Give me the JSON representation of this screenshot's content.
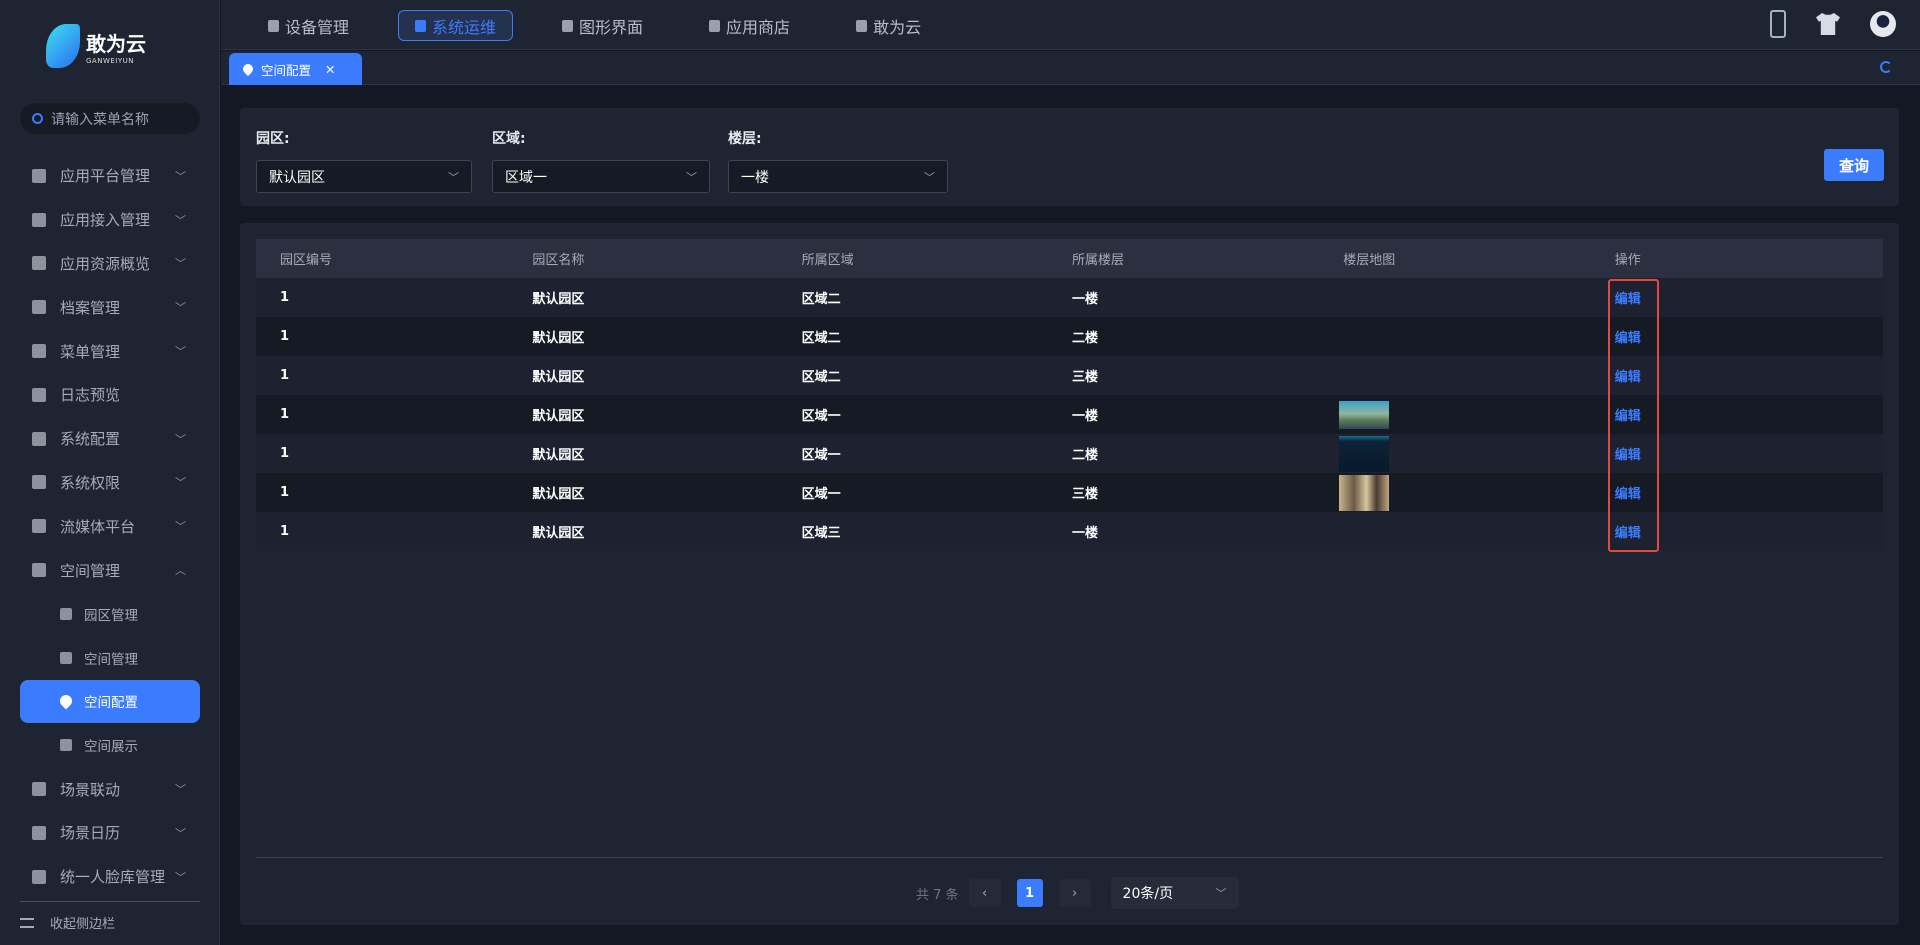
{
  "logo": {
    "name": "敢为云",
    "sub": "GANWEIYUN"
  },
  "search": {
    "placeholder": "请输入菜单名称"
  },
  "sidebar": {
    "items": [
      {
        "label": "应用平台管理",
        "chevron": "down"
      },
      {
        "label": "应用接入管理",
        "chevron": "down"
      },
      {
        "label": "应用资源概览",
        "chevron": "down"
      },
      {
        "label": "档案管理",
        "chevron": "down"
      },
      {
        "label": "菜单管理",
        "chevron": "down"
      },
      {
        "label": "日志预览"
      },
      {
        "label": "系统配置",
        "chevron": "down"
      },
      {
        "label": "系统权限",
        "chevron": "down"
      },
      {
        "label": "流媒体平台",
        "chevron": "down"
      },
      {
        "label": "空间管理",
        "chevron": "up"
      },
      {
        "label": "园区管理",
        "sub": true
      },
      {
        "label": "空间管理",
        "sub": true
      },
      {
        "label": "空间配置",
        "sub": true,
        "active": true
      },
      {
        "label": "空间展示",
        "sub": true
      },
      {
        "label": "场景联动",
        "chevron": "down"
      },
      {
        "label": "场景日历",
        "chevron": "down"
      },
      {
        "label": "统一人脸库管理",
        "chevron": "down"
      }
    ],
    "collapse": "收起侧边栏"
  },
  "topnav": {
    "items": [
      "设备管理",
      "系统运维",
      "图形界面",
      "应用商店",
      "敢为云"
    ],
    "active": 1
  },
  "tabs": [
    {
      "label": "空间配置",
      "close": "✕"
    }
  ],
  "filter": {
    "park": {
      "label": "园区:",
      "value": "默认园区"
    },
    "area": {
      "label": "区域:",
      "value": "区域一"
    },
    "floor": {
      "label": "楼层:",
      "value": "一楼"
    },
    "query": "查询"
  },
  "table": {
    "headers": [
      "园区编号",
      "园区名称",
      "所属区域",
      "所属楼层",
      "楼层地图",
      "操作"
    ],
    "rows": [
      {
        "id": "1",
        "name": "默认园区",
        "area": "区域二",
        "floor": "一楼",
        "map": "",
        "action": "编辑"
      },
      {
        "id": "1",
        "name": "默认园区",
        "area": "区域二",
        "floor": "二楼",
        "map": "",
        "action": "编辑"
      },
      {
        "id": "1",
        "name": "默认园区",
        "area": "区域二",
        "floor": "三楼",
        "map": "",
        "action": "编辑"
      },
      {
        "id": "1",
        "name": "默认园区",
        "area": "区域一",
        "floor": "一楼",
        "map": "aerial",
        "action": "编辑"
      },
      {
        "id": "1",
        "name": "默认园区",
        "area": "区域一",
        "floor": "二楼",
        "map": "dark",
        "action": "编辑"
      },
      {
        "id": "1",
        "name": "默认园区",
        "area": "区域一",
        "floor": "三楼",
        "map": "gate",
        "action": "编辑"
      },
      {
        "id": "1",
        "name": "默认园区",
        "area": "区域三",
        "floor": "一楼",
        "map": "",
        "action": "编辑"
      }
    ]
  },
  "pagination": {
    "total": "共 7 条",
    "prev": "‹",
    "page": "1",
    "next": "›",
    "size": "20条/页"
  },
  "colors": {
    "accent": "#3b7cff",
    "highlight": "#e4483e"
  }
}
